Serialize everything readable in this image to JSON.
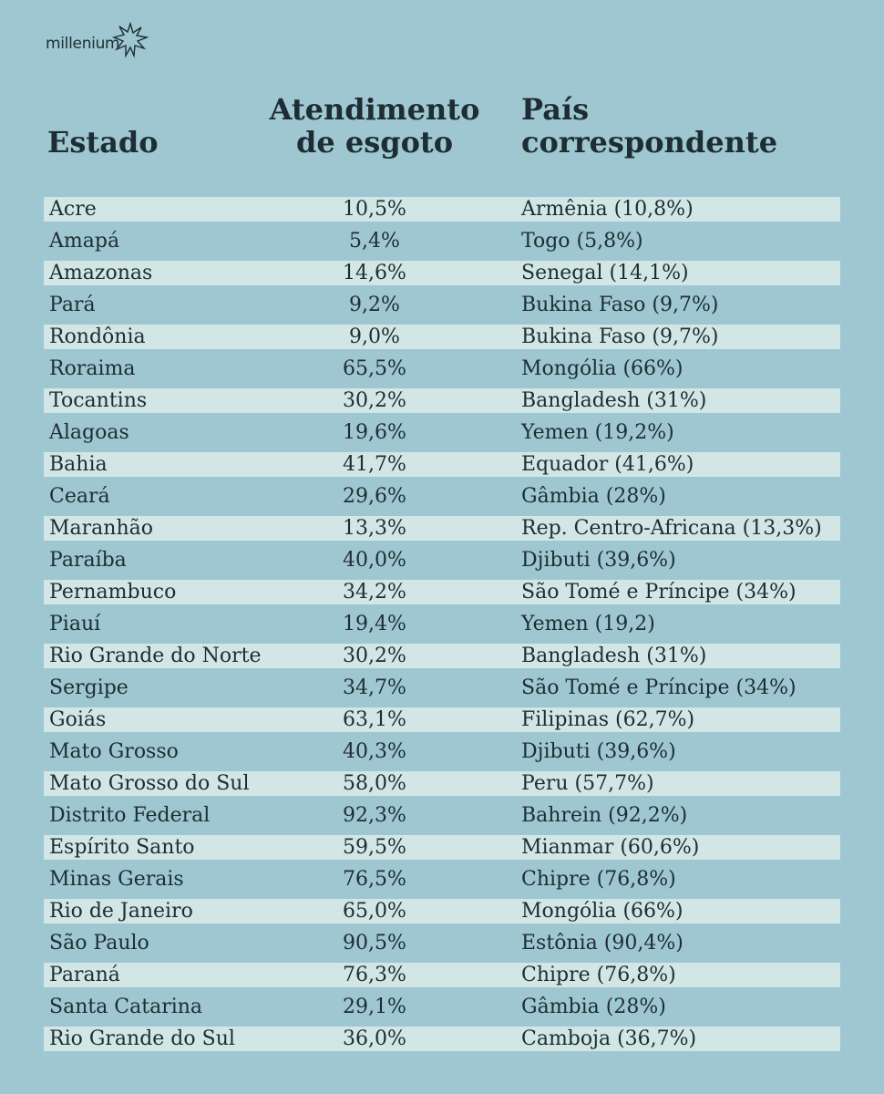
{
  "brand": {
    "name": "millenium"
  },
  "headers": {
    "estado": "Estado",
    "atendimento_line1": "Atendimento",
    "atendimento_line2": "de esgoto",
    "pais_line1": "País",
    "pais_line2": "correspondente"
  },
  "rows": [
    {
      "estado": "Acre",
      "atendimento": "10,5%",
      "pais": "Armênia (10,8%)"
    },
    {
      "estado": "Amapá",
      "atendimento": "5,4%",
      "pais": "Togo (5,8%)"
    },
    {
      "estado": "Amazonas",
      "atendimento": "14,6%",
      "pais": "Senegal (14,1%)"
    },
    {
      "estado": "Pará",
      "atendimento": "9,2%",
      "pais": "Bukina Faso (9,7%)"
    },
    {
      "estado": "Rondônia",
      "atendimento": "9,0%",
      "pais": "Bukina Faso (9,7%)"
    },
    {
      "estado": "Roraima",
      "atendimento": "65,5%",
      "pais": "Mongólia (66%)"
    },
    {
      "estado": "Tocantins",
      "atendimento": "30,2%",
      "pais": "Bangladesh (31%)"
    },
    {
      "estado": "Alagoas",
      "atendimento": "19,6%",
      "pais": "Yemen (19,2%)"
    },
    {
      "estado": "Bahia",
      "atendimento": "41,7%",
      "pais": "Equador (41,6%)"
    },
    {
      "estado": "Ceará",
      "atendimento": "29,6%",
      "pais": "Gâmbia (28%)"
    },
    {
      "estado": "Maranhão",
      "atendimento": "13,3%",
      "pais": "Rep. Centro-Africana (13,3%)"
    },
    {
      "estado": "Paraíba",
      "atendimento": "40,0%",
      "pais": "Djibuti (39,6%)"
    },
    {
      "estado": "Pernambuco",
      "atendimento": "34,2%",
      "pais": "São Tomé e Príncipe (34%)"
    },
    {
      "estado": "Piauí",
      "atendimento": "19,4%",
      "pais": "Yemen (19,2)"
    },
    {
      "estado": "Rio Grande do Norte",
      "atendimento": "30,2%",
      "pais": "Bangladesh (31%)"
    },
    {
      "estado": "Sergipe",
      "atendimento": "34,7%",
      "pais": "São Tomé e Príncipe (34%)"
    },
    {
      "estado": "Goiás",
      "atendimento": "63,1%",
      "pais": "Filipinas (62,7%)"
    },
    {
      "estado": "Mato Grosso",
      "atendimento": "40,3%",
      "pais": "Djibuti (39,6%)"
    },
    {
      "estado": "Mato Grosso do Sul",
      "atendimento": "58,0%",
      "pais": "Peru (57,7%)"
    },
    {
      "estado": "Distrito Federal",
      "atendimento": "92,3%",
      "pais": "Bahrein (92,2%)"
    },
    {
      "estado": "Espírito Santo",
      "atendimento": "59,5%",
      "pais": "Mianmar (60,6%)"
    },
    {
      "estado": "Minas Gerais",
      "atendimento": "76,5%",
      "pais": "Chipre (76,8%)"
    },
    {
      "estado": "Rio de Janeiro",
      "atendimento": "65,0%",
      "pais": "Mongólia (66%)"
    },
    {
      "estado": "São Paulo",
      "atendimento": "90,5%",
      "pais": "Estônia (90,4%)"
    },
    {
      "estado": "Paraná",
      "atendimento": "76,3%",
      "pais": "Chipre (76,8%)"
    },
    {
      "estado": "Santa Catarina",
      "atendimento": "29,1%",
      "pais": "Gâmbia (28%)"
    },
    {
      "estado": "Rio Grande do Sul",
      "atendimento": "36,0%",
      "pais": "Camboja (36,7%)"
    }
  ],
  "colors": {
    "background": "#9fc7d1",
    "band": "#d3e6e6",
    "text": "#1d2d33"
  }
}
